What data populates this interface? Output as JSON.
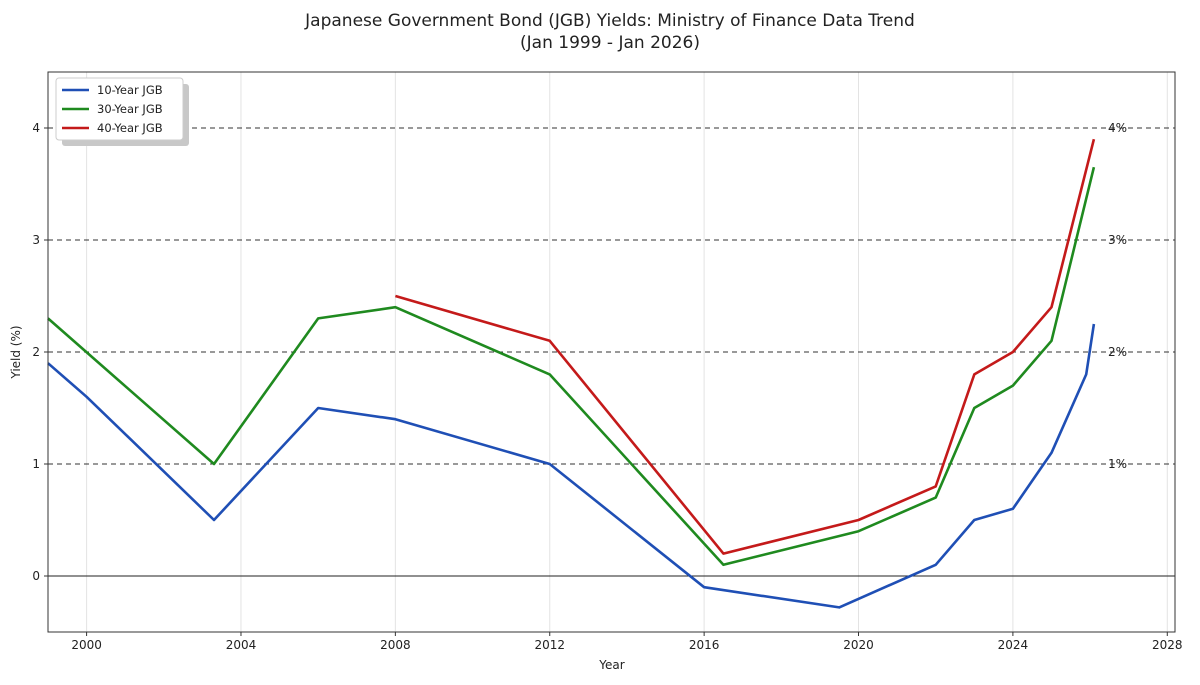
{
  "chart_data": {
    "type": "line",
    "title": "Japanese Government Bond (JGB) Yields: Ministry of Finance Data Trend",
    "subtitle": "(Jan 1999 - Jan 2026)",
    "xlabel": "Year",
    "ylabel": "Yield (%)",
    "xlim": [
      1999,
      2028.2
    ],
    "ylim": [
      -0.5,
      4.5
    ],
    "x_ticks": [
      2000,
      2004,
      2008,
      2012,
      2016,
      2020,
      2024,
      2028
    ],
    "y_ticks": [
      0,
      1,
      2,
      3,
      4
    ],
    "grid": true,
    "legend_position": "top-left",
    "reference_lines": [
      {
        "y": 1,
        "label": "1%"
      },
      {
        "y": 2,
        "label": "2%"
      },
      {
        "y": 3,
        "label": "3%"
      },
      {
        "y": 4,
        "label": "4%"
      }
    ],
    "zero_line": true,
    "series": [
      {
        "name": "10-Year JGB",
        "color": "#1f4fb5",
        "points": [
          [
            1999.0,
            1.9
          ],
          [
            2000.0,
            1.6
          ],
          [
            2003.3,
            0.5
          ],
          [
            2006.0,
            1.5
          ],
          [
            2008.0,
            1.4
          ],
          [
            2012.0,
            1.0
          ],
          [
            2016.0,
            -0.1
          ],
          [
            2019.5,
            -0.28
          ],
          [
            2022.0,
            0.1
          ],
          [
            2023.0,
            0.5
          ],
          [
            2024.0,
            0.6
          ],
          [
            2025.0,
            1.1
          ],
          [
            2025.9,
            1.8
          ],
          [
            2026.1,
            2.25
          ]
        ]
      },
      {
        "name": "30-Year JGB",
        "color": "#1f8a1f",
        "points": [
          [
            1999.0,
            2.3
          ],
          [
            2003.3,
            1.0
          ],
          [
            2006.0,
            2.3
          ],
          [
            2008.0,
            2.4
          ],
          [
            2012.0,
            1.8
          ],
          [
            2016.5,
            0.1
          ],
          [
            2020.0,
            0.4
          ],
          [
            2022.0,
            0.7
          ],
          [
            2023.0,
            1.5
          ],
          [
            2024.0,
            1.7
          ],
          [
            2025.0,
            2.1
          ],
          [
            2026.1,
            3.65
          ]
        ]
      },
      {
        "name": "40-Year JGB",
        "color": "#c41a1a",
        "points": [
          [
            2008.0,
            2.5
          ],
          [
            2012.0,
            2.1
          ],
          [
            2016.5,
            0.2
          ],
          [
            2020.0,
            0.5
          ],
          [
            2022.0,
            0.8
          ],
          [
            2023.0,
            1.8
          ],
          [
            2024.0,
            2.0
          ],
          [
            2025.0,
            2.4
          ],
          [
            2026.1,
            3.9
          ]
        ]
      }
    ]
  }
}
